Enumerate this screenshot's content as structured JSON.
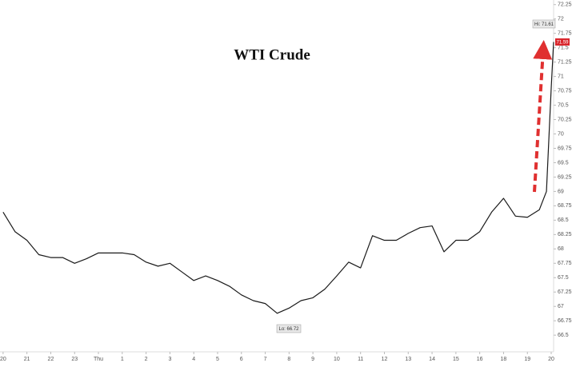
{
  "chart_data": {
    "type": "line",
    "title": "WTI Crude",
    "x": [
      0,
      0.5,
      1,
      1.5,
      2,
      2.5,
      3,
      3.5,
      4,
      4.5,
      5,
      5.5,
      6,
      6.5,
      7,
      7.5,
      8,
      8.5,
      9,
      9.5,
      10,
      10.5,
      11,
      11.5,
      12,
      12.5,
      13,
      13.5,
      14,
      14.5,
      15,
      15.5,
      16,
      16.5,
      17,
      17.5,
      18,
      18.5,
      19,
      19.5,
      20,
      20.5,
      21,
      21.5,
      22,
      22.5,
      22.8,
      23,
      23.1
    ],
    "series": [
      {
        "name": "WTI Crude",
        "color": "#1a1a1a",
        "values": [
          68.64,
          68.3,
          68.15,
          67.9,
          67.85,
          67.85,
          67.75,
          67.83,
          67.93,
          67.93,
          67.93,
          67.9,
          67.77,
          67.7,
          67.75,
          67.6,
          67.45,
          67.53,
          67.45,
          67.35,
          67.2,
          67.1,
          67.05,
          66.88,
          66.97,
          67.1,
          67.15,
          67.3,
          67.53,
          67.77,
          67.67,
          68.23,
          68.15,
          68.15,
          68.27,
          68.37,
          68.4,
          67.95,
          68.15,
          68.15,
          68.3,
          68.64,
          68.88,
          68.57,
          68.55,
          68.68,
          69.0,
          70.8,
          71.6
        ]
      }
    ],
    "xlim": [
      -0.13,
      23.1
    ],
    "xticks": [
      {
        "value": 0,
        "label": "20"
      },
      {
        "value": 1,
        "label": "21"
      },
      {
        "value": 2,
        "label": "22"
      },
      {
        "value": 3,
        "label": "23"
      },
      {
        "value": 4,
        "label": "Thu"
      },
      {
        "value": 5,
        "label": "1"
      },
      {
        "value": 6,
        "label": "2"
      },
      {
        "value": 7,
        "label": "3"
      },
      {
        "value": 8,
        "label": "4"
      },
      {
        "value": 9,
        "label": "5"
      },
      {
        "value": 10,
        "label": "6"
      },
      {
        "value": 11,
        "label": "7"
      },
      {
        "value": 12,
        "label": "8"
      },
      {
        "value": 13,
        "label": "9"
      },
      {
        "value": 14,
        "label": "10"
      },
      {
        "value": 15,
        "label": "11"
      },
      {
        "value": 16,
        "label": "12"
      },
      {
        "value": 17,
        "label": "13"
      },
      {
        "value": 18,
        "label": "14"
      },
      {
        "value": 19,
        "label": "15"
      },
      {
        "value": 20,
        "label": "16"
      },
      {
        "value": 21,
        "label": "18"
      },
      {
        "value": 22,
        "label": "19"
      },
      {
        "value": 23,
        "label": "20"
      }
    ],
    "ylim": [
      66.21,
      72.33
    ],
    "yticks": [
      66.5,
      66.75,
      67,
      67.25,
      67.5,
      67.75,
      68,
      68.25,
      68.5,
      68.75,
      69,
      69.25,
      69.5,
      69.75,
      70,
      70.25,
      70.5,
      70.75,
      71,
      71.25,
      71.5,
      71.75,
      72,
      72.25
    ],
    "annotations": {
      "high": "Hi: 71.61",
      "low": "Lo: 66.72",
      "last": "71.59"
    }
  }
}
